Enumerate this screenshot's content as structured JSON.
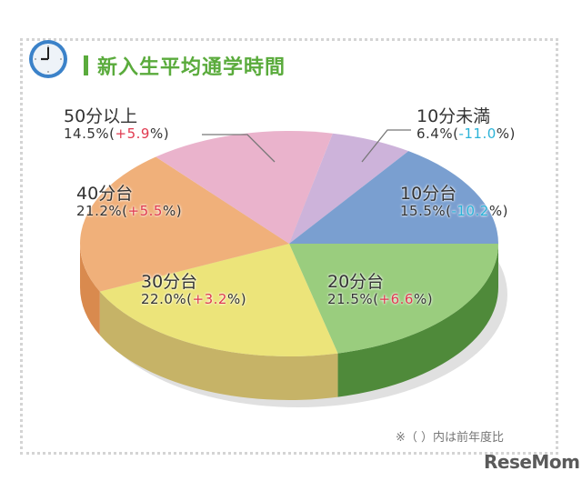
{
  "title": "新入生平均通学時間",
  "note": "※（ ）内は前年度比",
  "watermark": "ReseMom",
  "icons": {
    "title_icon": "clock-icon"
  },
  "colors": {
    "title": "#5aab3c",
    "positive_change": "#e0394f",
    "negative_change": "#2bb3d8"
  },
  "chart_data": {
    "type": "pie",
    "title": "新入生平均通学時間",
    "subtitle": "",
    "annotation": "※（ ）内は前年度比",
    "style": "3d",
    "categories": [
      "10分未満",
      "10分台",
      "20分台",
      "30分台",
      "40分台",
      "50分以上"
    ],
    "values": [
      6.4,
      15.5,
      21.5,
      22.0,
      21.2,
      14.5
    ],
    "changes_vs_prev_year": [
      -11.0,
      -10.2,
      6.6,
      3.2,
      5.5,
      5.9
    ],
    "unit": "%",
    "slices": [
      {
        "label": "10分未満",
        "value": 6.4,
        "value_text": "6.4%",
        "change_text": "-11.0",
        "change_sign": "neg",
        "color": "#cdb3da",
        "side": "#a68cb3"
      },
      {
        "label": "10分台",
        "value": 15.5,
        "value_text": "15.5%",
        "change_text": "-10.2",
        "change_sign": "neg",
        "color": "#7a9fd0",
        "side": "#4f73a6"
      },
      {
        "label": "20分台",
        "value": 21.5,
        "value_text": "21.5%",
        "change_text": "+6.6",
        "change_sign": "pos",
        "color": "#9acd7e",
        "side": "#4f8a3a"
      },
      {
        "label": "30分台",
        "value": 22.0,
        "value_text": "22.0%",
        "change_text": "+3.2",
        "change_sign": "pos",
        "color": "#ece47a",
        "side": "#c6b367"
      },
      {
        "label": "40分台",
        "value": 21.2,
        "value_text": "21.2%",
        "change_text": "+5.5",
        "change_sign": "pos",
        "color": "#f0b07a",
        "side": "#d98a4e"
      },
      {
        "label": "50分以上",
        "value": 14.5,
        "value_text": "14.5%",
        "change_text": "+5.9",
        "change_sign": "pos",
        "color": "#eab3cc",
        "side": "#c88aa8"
      }
    ]
  }
}
